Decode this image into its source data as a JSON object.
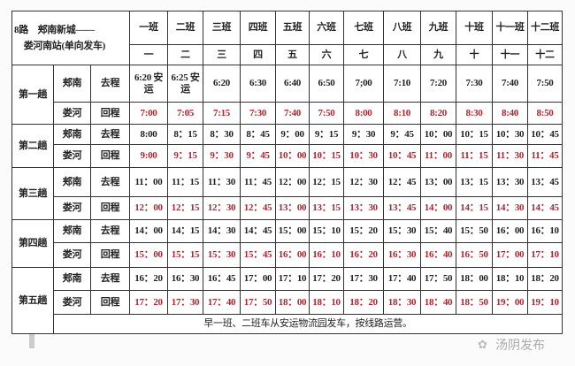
{
  "title_line1": "8路　郏南新城——",
  "title_line2": "　娄河南站(单向发车)",
  "columns": [
    "一班",
    "二班",
    "三班",
    "四班",
    "五班",
    "六班",
    "七班",
    "八班",
    "九班",
    "十班",
    "十一班",
    "十二班"
  ],
  "columns_sub": [
    "一",
    "二",
    "三",
    "四",
    "五",
    "六",
    "七",
    "八",
    "九",
    "十",
    "十一",
    "十二"
  ],
  "trips": [
    {
      "label": "第一趟",
      "go_station": "郏南",
      "go_label": "去程",
      "back_station": "娄河",
      "back_label": "回程",
      "go": [
        "6:20 安运",
        "6:25 安运",
        "6:20",
        "6:30",
        "6:40",
        "6:50",
        "7;00",
        "7:10",
        "7:20",
        "7:30",
        "7:40",
        "7:50"
      ],
      "back": [
        "7:00",
        "7:05",
        "7:15",
        "7:30",
        "7:40",
        "7:50",
        "8:00",
        "8:10",
        "8:20",
        "8:30",
        "8:40",
        "8:50"
      ]
    },
    {
      "label": "第二趟",
      "go_station": "郏南",
      "go_label": "去程",
      "back_station": "娄河",
      "back_label": "回程",
      "go": [
        "8:00",
        "8：15",
        "8：30",
        "8：45",
        "9：00",
        "9：15",
        "9：30",
        "9：45",
        "10：00",
        "10：15",
        "10：30",
        "10：45"
      ],
      "back": [
        "9:00",
        "9：15",
        "9：30",
        "9：45",
        "10：00",
        "10：15",
        "10：30",
        "10：45",
        "11：00",
        "11：15",
        "11：30",
        "11：45"
      ]
    },
    {
      "label": "第三趟",
      "go_station": "郏南",
      "go_label": "去程",
      "back_station": "娄河",
      "back_label": "回程",
      "go": [
        "11：00",
        "11：15",
        "11：30",
        "11：45",
        "12：00",
        "12：15",
        "12：30",
        "12：45",
        "13：00",
        "13：15",
        "13：30",
        "13：45"
      ],
      "back": [
        "12：00",
        "12：15",
        "12：30",
        "12：45",
        "13：00",
        "13：15",
        "13：30",
        "13：45",
        "14：00",
        "14：15",
        "14：30",
        "14：45"
      ]
    },
    {
      "label": "第四趟",
      "go_station": "郏南",
      "go_label": "去程",
      "back_station": "娄河",
      "back_label": "回程",
      "go": [
        "14：00",
        "14：15",
        "14：30",
        "14：45",
        "15：00",
        "15：10",
        "15：20",
        "15：30",
        "15：40",
        "15：50",
        "16：00",
        "16：10"
      ],
      "back": [
        "15：00",
        "15：15",
        "15：30",
        "15：45",
        "16：00",
        "16：10",
        "16：20",
        "16：30",
        "16：40",
        "16：50",
        "17：00",
        "17：10"
      ]
    },
    {
      "label": "第五趟",
      "go_station": "郏南",
      "go_label": "去程",
      "back_station": "娄河",
      "back_label": "回程",
      "go": [
        "16：20",
        "16：30",
        "16：45",
        "17：00",
        "17：10",
        "17：20",
        "17：30",
        "17：40",
        "17：50",
        "18：00",
        "18：10",
        "18：20"
      ],
      "back": [
        "17：20",
        "17：30",
        "17：40",
        "17：50",
        "18：00",
        "18：10",
        "18：20",
        "18：30",
        "18：40",
        "18：50",
        "19：00",
        "19：10"
      ]
    }
  ],
  "note": "早一班、二班车从安运物流园发车，按线路运营。",
  "watermark": "汤阴发布",
  "colors": {
    "return": "#b0262e",
    "text": "#222222"
  }
}
